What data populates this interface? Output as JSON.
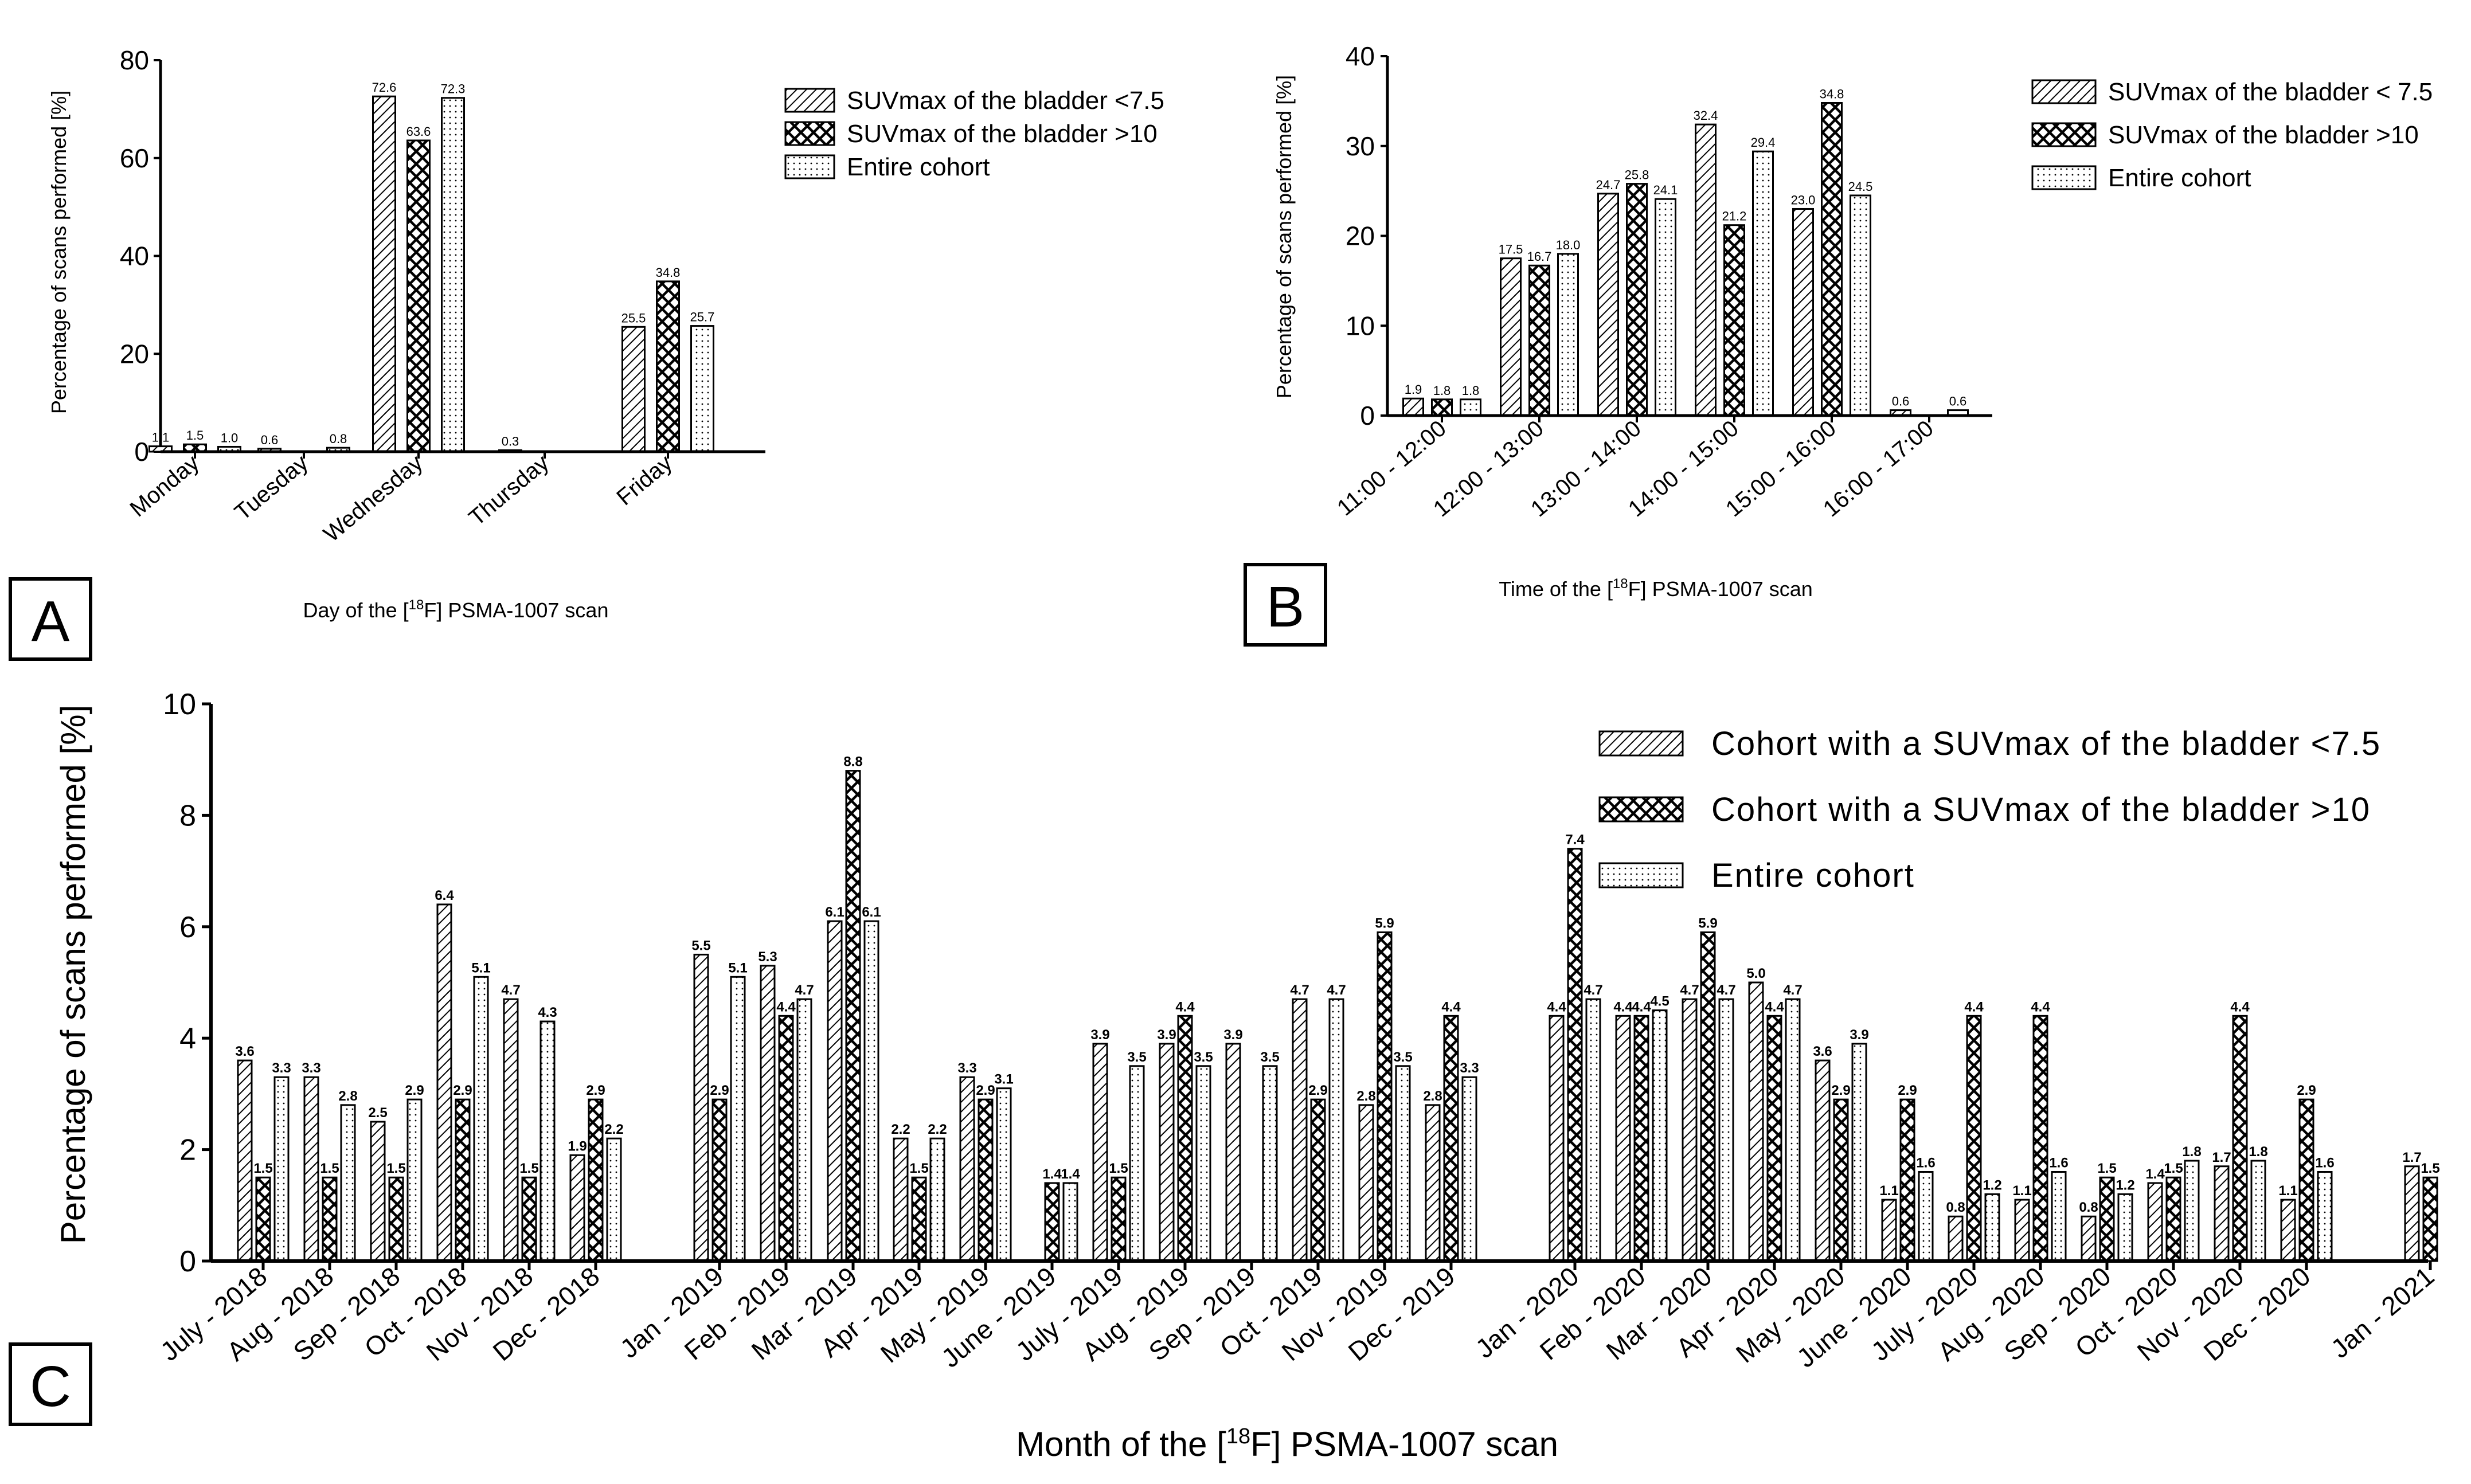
{
  "patterns": [
    "hatch",
    "cross",
    "dots"
  ],
  "panels": {
    "A": {
      "label": "A",
      "chart_data": {
        "type": "bar",
        "title": "",
        "xlabel": "Day of the [18F] PSMA-1007 scan",
        "ylabel": "Percentage of scans performed [%]",
        "ylim": [
          0,
          80
        ],
        "yticks": [
          0,
          20,
          40,
          60,
          80
        ],
        "categories": [
          "Monday",
          "Tuesday",
          "Wednesday",
          "Thursday",
          "Friday"
        ],
        "series": [
          {
            "name": "SUVmax of the bladder <7.5",
            "values": [
              1.1,
              0.6,
              72.6,
              0.3,
              25.5
            ]
          },
          {
            "name": "SUVmax of the bladder >10",
            "values": [
              1.5,
              0.0,
              63.6,
              0.0,
              34.8
            ]
          },
          {
            "name": "Entire cohort",
            "values": [
              1.0,
              0.8,
              72.3,
              0.0,
              25.7
            ]
          }
        ],
        "labels": [
          [
            "1.1",
            "0.6",
            "72.6",
            "0.3",
            "25.5"
          ],
          [
            "1.5",
            "",
            "63.6",
            "",
            "34.8"
          ],
          [
            "1.0",
            "0.8",
            "72.3",
            "",
            "25.7"
          ]
        ],
        "legend_position": "top-right"
      }
    },
    "B": {
      "label": "B",
      "chart_data": {
        "type": "bar",
        "title": "",
        "xlabel": "Time of the [18F] PSMA-1007 scan",
        "ylabel": "Percentage of scans performed [%]",
        "ylim": [
          0,
          40
        ],
        "yticks": [
          0,
          10,
          20,
          30,
          40
        ],
        "categories": [
          "11:00 - 12:00",
          "12:00 - 13:00",
          "13:00 - 14:00",
          "14:00 - 15:00",
          "15:00 - 16:00",
          "16:00 - 17:00"
        ],
        "series": [
          {
            "name": "SUVmax of the bladder < 7.5",
            "values": [
              1.9,
              17.5,
              24.7,
              32.4,
              23.0,
              0.6
            ]
          },
          {
            "name": "SUVmax of the bladder >10",
            "values": [
              1.8,
              16.7,
              25.8,
              21.2,
              34.8,
              0.0
            ]
          },
          {
            "name": "Entire cohort",
            "values": [
              1.8,
              18.0,
              24.1,
              29.4,
              24.5,
              0.6
            ]
          }
        ],
        "labels": [
          [
            "1.9",
            "17.5",
            "24.7",
            "32.4",
            "23.0",
            "0.6"
          ],
          [
            "1.8",
            "16.7",
            "25.8",
            "21.2",
            "34.8",
            ""
          ],
          [
            "1.8",
            "18.0",
            "24.1",
            "29.4",
            "24.5",
            "0.6"
          ]
        ],
        "legend_position": "top-right"
      }
    },
    "C": {
      "label": "C",
      "chart_data": {
        "type": "bar",
        "title": "",
        "xlabel": "Month of the [18F] PSMA-1007 scan",
        "ylabel": "Percentage of scans performed [%]",
        "ylim": [
          0,
          10
        ],
        "yticks": [
          0,
          2,
          4,
          6,
          8,
          10
        ],
        "categories": [
          "July - 2018",
          "Aug - 2018",
          "Sep - 2018",
          "Oct - 2018",
          "Nov - 2018",
          "Dec - 2018",
          "Jan - 2019",
          "Feb - 2019",
          "Mar - 2019",
          "Apr - 2019",
          "May - 2019",
          "June - 2019",
          "July - 2019",
          "Aug - 2019",
          "Sep - 2019",
          "Oct - 2019",
          "Nov - 2019",
          "Dec - 2019",
          "Jan - 2020",
          "Feb - 2020",
          "Mar - 2020",
          "Apr - 2020",
          "May - 2020",
          "June - 2020",
          "July - 2020",
          "Aug - 2020",
          "Sep - 2020",
          "Oct - 2020",
          "Nov - 2020",
          "Dec - 2020",
          "Jan - 2021"
        ],
        "series": [
          {
            "name": "Cohort with a SUVmax of the bladder <7.5",
            "values": [
              3.6,
              3.3,
              2.5,
              6.4,
              4.7,
              1.9,
              5.5,
              5.3,
              6.1,
              2.2,
              3.3,
              0.0,
              3.9,
              3.9,
              3.9,
              4.7,
              2.8,
              2.8,
              4.4,
              4.4,
              4.7,
              5.0,
              3.6,
              1.1,
              0.8,
              1.1,
              0.8,
              1.4,
              1.7,
              1.1,
              1.7
            ]
          },
          {
            "name": "Cohort with a SUVmax of the bladder >10",
            "values": [
              1.5,
              1.5,
              1.5,
              2.9,
              1.5,
              2.9,
              2.9,
              4.4,
              8.8,
              1.5,
              2.9,
              1.4,
              1.5,
              4.4,
              0.0,
              2.9,
              5.9,
              4.4,
              7.4,
              4.4,
              5.9,
              4.4,
              2.9,
              2.9,
              4.4,
              4.4,
              1.5,
              1.5,
              4.4,
              2.9,
              1.5
            ]
          },
          {
            "name": "Entire cohort",
            "values": [
              3.3,
              2.8,
              2.9,
              5.1,
              4.3,
              2.2,
              5.1,
              4.7,
              6.1,
              2.2,
              3.1,
              1.4,
              3.5,
              3.5,
              3.5,
              4.7,
              3.5,
              3.3,
              4.7,
              4.5,
              4.7,
              4.7,
              3.9,
              1.6,
              1.2,
              1.6,
              1.2,
              1.8,
              1.8,
              1.6,
              0.0
            ]
          }
        ],
        "labels": [
          [
            "3.6",
            "3.3",
            "2.5",
            "6.4",
            "4.7",
            "1.9",
            "5.5",
            "5.3",
            "6.1",
            "2.2",
            "3.3",
            "",
            "3.9",
            "3.9",
            "3.9",
            "4.7",
            "2.8",
            "2.8",
            "4.4",
            "4.4",
            "4.7",
            "5.0",
            "3.6",
            "1.1",
            "0.8",
            "1.1",
            "0.8",
            "1.4",
            "1.7",
            "1.1",
            "1.7"
          ],
          [
            "1.5",
            "1.5",
            "1.5",
            "2.9",
            "1.5",
            "2.9",
            "2.9",
            "4.4",
            "8.8",
            "1.5",
            "2.9",
            "1.4",
            "1.5",
            "4.4",
            "",
            "2.9",
            "5.9",
            "4.4",
            "7.4",
            "4.4",
            "5.9",
            "4.4",
            "2.9",
            "2.9",
            "4.4",
            "4.4",
            "1.5",
            "1.5",
            "4.4",
            "2.9",
            "1.5"
          ],
          [
            "3.3",
            "2.8",
            "2.9",
            "5.1",
            "4.3",
            "2.2",
            "5.1",
            "4.7",
            "6.1",
            "2.2",
            "3.1",
            "1.4",
            "3.5",
            "3.5",
            "3.5",
            "4.7",
            "3.5",
            "3.3",
            "4.7",
            "4.5",
            "4.7",
            "4.7",
            "3.9",
            "1.6",
            "1.2",
            "1.6",
            "1.2",
            "1.8",
            "1.8",
            "1.6",
            ""
          ]
        ],
        "legend_position": "top-right"
      }
    }
  }
}
